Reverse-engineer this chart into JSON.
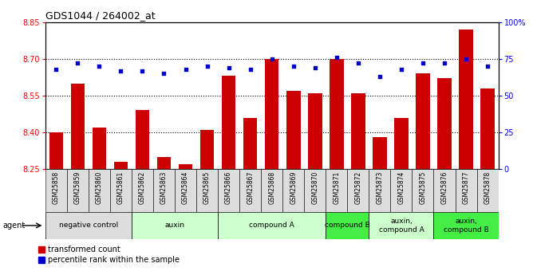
{
  "title": "GDS1044 / 264002_at",
  "samples": [
    "GSM25858",
    "GSM25859",
    "GSM25860",
    "GSM25861",
    "GSM25862",
    "GSM25863",
    "GSM25864",
    "GSM25865",
    "GSM25866",
    "GSM25867",
    "GSM25868",
    "GSM25869",
    "GSM25870",
    "GSM25871",
    "GSM25872",
    "GSM25873",
    "GSM25874",
    "GSM25875",
    "GSM25876",
    "GSM25877",
    "GSM25878"
  ],
  "bar_values": [
    8.4,
    8.6,
    8.42,
    8.28,
    8.49,
    8.3,
    8.27,
    8.41,
    8.63,
    8.46,
    8.7,
    8.57,
    8.56,
    8.7,
    8.56,
    8.38,
    8.46,
    8.64,
    8.62,
    8.82,
    8.58
  ],
  "percentile_values": [
    68,
    72,
    70,
    67,
    67,
    65,
    68,
    70,
    69,
    68,
    75,
    70,
    69,
    76,
    72,
    63,
    68,
    72,
    72,
    75,
    70
  ],
  "ylim_left": [
    8.25,
    8.85
  ],
  "ylim_right": [
    0,
    100
  ],
  "yticks_left": [
    8.25,
    8.4,
    8.55,
    8.7,
    8.85
  ],
  "yticks_right": [
    0,
    25,
    50,
    75,
    100
  ],
  "grid_values": [
    8.4,
    8.55,
    8.7
  ],
  "bar_color": "#cc0000",
  "dot_color": "#0000cc",
  "groups": [
    {
      "label": "negative control",
      "start": 0,
      "end": 3,
      "color": "#dddddd"
    },
    {
      "label": "auxin",
      "start": 4,
      "end": 7,
      "color": "#ccffcc"
    },
    {
      "label": "compound A",
      "start": 8,
      "end": 12,
      "color": "#ccffcc"
    },
    {
      "label": "compound B",
      "start": 13,
      "end": 14,
      "color": "#44ee44"
    },
    {
      "label": "auxin,\ncompound A",
      "start": 15,
      "end": 17,
      "color": "#ccffcc"
    },
    {
      "label": "auxin,\ncompound B",
      "start": 18,
      "end": 20,
      "color": "#44ee44"
    }
  ],
  "legend_items": [
    {
      "label": "transformed count",
      "color": "#cc0000"
    },
    {
      "label": "percentile rank within the sample",
      "color": "#0000cc"
    }
  ]
}
